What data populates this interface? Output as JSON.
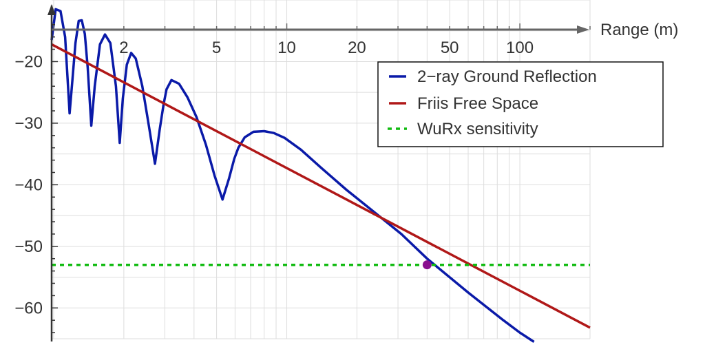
{
  "chart_data": {
    "type": "line",
    "xlabel": "Range (m)",
    "ylabel": "",
    "x_scale": "log",
    "xlim": [
      0.98,
      200
    ],
    "ylim": [
      -65,
      -10
    ],
    "grid": true,
    "x_tick_labels": [
      {
        "value": 2,
        "label": "2"
      },
      {
        "value": 5,
        "label": "5"
      },
      {
        "value": 10,
        "label": "10"
      },
      {
        "value": 20,
        "label": "20"
      },
      {
        "value": 50,
        "label": "50"
      },
      {
        "value": 100,
        "label": "100"
      }
    ],
    "y_tick_labels": [
      {
        "value": -20,
        "label": "−20"
      },
      {
        "value": -30,
        "label": "−30"
      },
      {
        "value": -40,
        "label": "−40"
      },
      {
        "value": -50,
        "label": "−50"
      },
      {
        "value": -60,
        "label": "−60"
      }
    ],
    "legend_position": "top-right",
    "series": [
      {
        "name": "2−ray Ground Reflection",
        "color": "#0a1aa8",
        "style": "solid",
        "x": [
          0.98,
          1.02,
          1.07,
          1.12,
          1.17,
          1.2,
          1.24,
          1.28,
          1.32,
          1.36,
          1.4,
          1.45,
          1.5,
          1.58,
          1.66,
          1.75,
          1.85,
          1.92,
          1.98,
          2.06,
          2.15,
          2.25,
          2.4,
          2.55,
          2.72,
          2.85,
          2.96,
          3.05,
          3.2,
          3.45,
          3.75,
          4.1,
          4.5,
          4.9,
          5.3,
          5.65,
          5.95,
          6.2,
          6.6,
          7.2,
          8.0,
          8.8,
          9.8,
          11.5,
          14.0,
          18.0,
          24.0,
          31.0,
          40.0,
          60.0,
          85.0,
          100.0,
          115.0
        ],
        "y": [
          -16.5,
          -11.5,
          -11.8,
          -16,
          -28.4,
          -23.5,
          -17,
          -13.4,
          -13.3,
          -15.5,
          -21,
          -30.4,
          -24,
          -17.2,
          -15.6,
          -17,
          -24,
          -33.2,
          -26,
          -20.5,
          -18.6,
          -19.5,
          -24,
          -30,
          -36.6,
          -31,
          -27,
          -24.5,
          -23,
          -23.6,
          -25.8,
          -29,
          -33.5,
          -38.5,
          -42.4,
          -39,
          -35.8,
          -34,
          -32.3,
          -31.4,
          -31.3,
          -31.6,
          -32.4,
          -34.3,
          -37.2,
          -40.8,
          -44.6,
          -48,
          -52,
          -57.5,
          -62,
          -64,
          -65.5
        ]
      },
      {
        "name": "Friis Free Space",
        "color": "#b01818",
        "style": "solid",
        "x": [
          0.98,
          200
        ],
        "y": [
          -17.2,
          -63.2
        ]
      },
      {
        "name": "WuRx sensitivity",
        "color": "#11bb11",
        "style": "dashed",
        "x": [
          0.98,
          200
        ],
        "y": [
          -53,
          -53
        ]
      }
    ],
    "points": [
      {
        "x": 40,
        "y": -53,
        "color": "#8a0f8f"
      }
    ]
  }
}
